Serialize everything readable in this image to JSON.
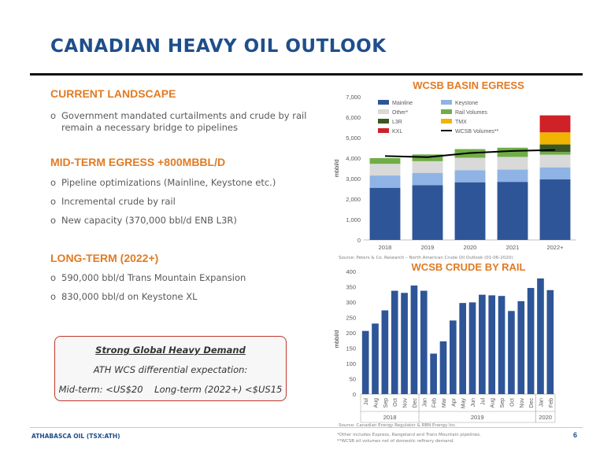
{
  "slide": {
    "title": "CANADIAN HEAVY OIL OUTLOOK",
    "page_number": "6",
    "footer": "ATHABASCA OIL (TSX:ATH)",
    "notes": [
      "*Other includes Express, Rangeland and Trans Mountain pipelines.",
      "**WCSB oil volumes net of domestic refinery demand."
    ]
  },
  "left": {
    "sections": [
      {
        "heading": "CURRENT LANDSCAPE",
        "bullets": [
          {
            "line1": "Government mandated curtailments and crude by rail",
            "line2": "remain a necessary bridge to pipelines"
          }
        ]
      },
      {
        "heading": "MID-TERM EGRESS +800MBBL/D",
        "bullets": [
          {
            "line1": "Pipeline optimizations (Mainline, Keystone etc.)"
          },
          {
            "line1": "Incremental crude by rail"
          },
          {
            "line1": "New capacity (370,000 bbl/d ENB L3R)"
          }
        ]
      },
      {
        "heading": "LONG-TERM (2022+)",
        "bullets": [
          {
            "line1": "590,000 bbl/d Trans Mountain Expansion"
          },
          {
            "line1": "830,000 bbl/d on Keystone XL"
          }
        ]
      }
    ],
    "bullet_marker": "o",
    "demand_box": {
      "heading": "Strong Global Heavy Demand",
      "line2": "ATH WCS differential expectation:",
      "line3": "Mid-term: <US$20    Long-term (2022+) <$US15"
    }
  },
  "chart_data": [
    {
      "type": "bar",
      "title": "WCSB BASIN EGRESS",
      "ylabel": "mbbl/d",
      "ylim": [
        0,
        7000
      ],
      "yticks": [
        "0",
        "1,000",
        "2,000",
        "3,000",
        "4,000",
        "5,000",
        "6,000",
        "7,000"
      ],
      "categories": [
        "2018",
        "2019",
        "2020",
        "2021",
        "2022+"
      ],
      "stacked": true,
      "series": [
        {
          "name": "Mainline",
          "color": "#2e5597",
          "values": [
            2550,
            2680,
            2820,
            2840,
            2960
          ]
        },
        {
          "name": "Keystone",
          "color": "#8fb3e4",
          "values": [
            600,
            600,
            590,
            600,
            590
          ]
        },
        {
          "name": "Other*",
          "color": "#d9d9d9",
          "values": [
            570,
            570,
            610,
            620,
            620
          ]
        },
        {
          "name": "Rail Volumes",
          "color": "#70ad47",
          "values": [
            280,
            330,
            420,
            450,
            130
          ]
        },
        {
          "name": "L3R",
          "color": "#385723",
          "values": [
            0,
            0,
            0,
            0,
            370
          ]
        },
        {
          "name": "TMX",
          "color": "#f0b400",
          "values": [
            0,
            0,
            0,
            0,
            590
          ]
        },
        {
          "name": "KXL",
          "color": "#cf2127",
          "values": [
            0,
            0,
            0,
            0,
            830
          ]
        }
      ],
      "line_series": {
        "name": "WCSB Volumes**",
        "color": "#000000",
        "values": [
          4100,
          4050,
          4250,
          4350,
          4400
        ]
      },
      "legend_position": "top-left",
      "source": "Source: Peters & Co. Research – North American Crude Oil Outlook (01-06-2020)"
    },
    {
      "type": "bar",
      "title": "WCSB CRUDE BY RAIL",
      "ylabel": "mbbl/d",
      "ylim": [
        0,
        400
      ],
      "yticks": [
        "0",
        "50",
        "100",
        "150",
        "200",
        "250",
        "300",
        "350",
        "400"
      ],
      "color": "#2e5597",
      "categories": [
        "Jul",
        "Aug",
        "Sep",
        "Oct",
        "Nov",
        "Dec",
        "Jan",
        "Feb",
        "Mar",
        "Apr",
        "May",
        "Jun",
        "Jul",
        "Aug",
        "Sep",
        "Oct",
        "Nov",
        "Dec",
        "Jan",
        "Feb"
      ],
      "values": [
        206,
        230,
        273,
        337,
        330,
        354,
        337,
        132,
        172,
        240,
        297,
        299,
        324,
        322,
        320,
        271,
        303,
        346,
        377,
        339
      ],
      "year_groups": [
        {
          "label": "2018",
          "from": 0,
          "to": 6
        },
        {
          "label": "2019",
          "from": 6,
          "to": 18
        },
        {
          "label": "2020",
          "from": 18,
          "to": 20
        }
      ],
      "source": "Source: Canadian Energy Regulator & RBN Energy Inc."
    }
  ]
}
